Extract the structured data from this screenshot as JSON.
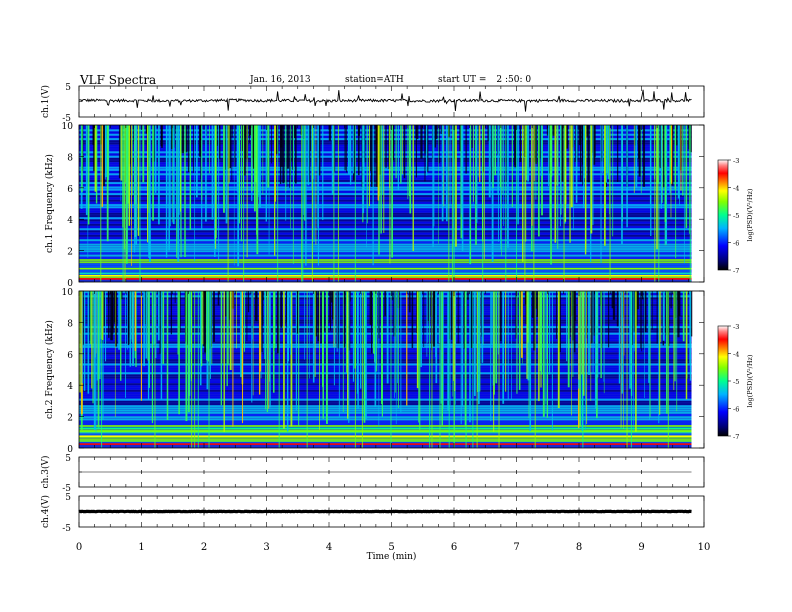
{
  "header": {
    "title": "VLF  Spectra",
    "date": "Jan. 16, 2013",
    "station": "station=ATH",
    "start_label": "start  UT  =",
    "start_value": "2  :50: 0"
  },
  "colors": {
    "trace": "#000000",
    "spectrogram_bg": "#1b2bd0",
    "colormap": [
      "#000000",
      "#0000ff",
      "#00c8ff",
      "#00ff80",
      "#ffff00",
      "#ff0000",
      "#ffffff"
    ]
  },
  "chart_data": [
    {
      "type": "line",
      "panel": "ch1-waveform",
      "ylabel": "ch.1(V)",
      "ylim": [
        -5,
        5
      ],
      "yticks": [
        "5",
        "-5"
      ],
      "x": [
        0,
        0.5,
        1,
        1.5,
        2,
        2.5,
        3,
        3.5,
        4,
        4.5,
        5,
        5.5,
        6,
        6.5,
        7,
        7.5,
        8,
        8.5,
        9,
        9.5,
        9.8
      ],
      "y": [
        0.4,
        0.3,
        0.3,
        0.2,
        0.3,
        0.4,
        0.3,
        0.3,
        0.2,
        0.3,
        0.3,
        0.2,
        0.3,
        0.3,
        0.2,
        0.3,
        0.3,
        0.2,
        0.3,
        0.3,
        0.3
      ]
    },
    {
      "type": "heatmap",
      "panel": "ch1-spectrogram",
      "ylabel": "ch.1 Frequency  (kHz)",
      "ylim": [
        0,
        10
      ],
      "yticks": [
        "0",
        "2",
        "4",
        "6",
        "8",
        "10"
      ],
      "colorbar_label": "log(PSD)(V²/Hz)",
      "colorbar_ticks": [
        "-3",
        "-4",
        "-5",
        "-6",
        "-7"
      ],
      "clim": [
        -7,
        -3
      ]
    },
    {
      "type": "heatmap",
      "panel": "ch2-spectrogram",
      "ylabel": "ch.2 Frequency  (kHz)",
      "ylim": [
        0,
        10
      ],
      "yticks": [
        "0",
        "2",
        "4",
        "6",
        "8",
        "10"
      ],
      "colorbar_label": "log(PSD)(V²/Hz)",
      "colorbar_ticks": [
        "-3",
        "-4",
        "-5",
        "-6",
        "-7"
      ],
      "clim": [
        -7,
        -3
      ]
    },
    {
      "type": "line",
      "panel": "ch3-waveform",
      "ylabel": "ch.3(V)",
      "ylim": [
        -5,
        5
      ],
      "yticks": [
        "5",
        "-5"
      ],
      "x": [
        0,
        9.8
      ],
      "y": [
        0,
        0
      ]
    },
    {
      "type": "line",
      "panel": "ch4-waveform",
      "ylabel": "ch.4(V)",
      "ylim": [
        -5,
        5
      ],
      "yticks": [
        "5",
        "-5"
      ],
      "x": [
        0,
        9.8
      ],
      "y": [
        0,
        0
      ]
    }
  ],
  "xaxis": {
    "label": "Time  (min)",
    "range": [
      0,
      10
    ],
    "ticks": [
      "0",
      "1",
      "2",
      "3",
      "4",
      "5",
      "6",
      "7",
      "8",
      "9",
      "10"
    ]
  }
}
